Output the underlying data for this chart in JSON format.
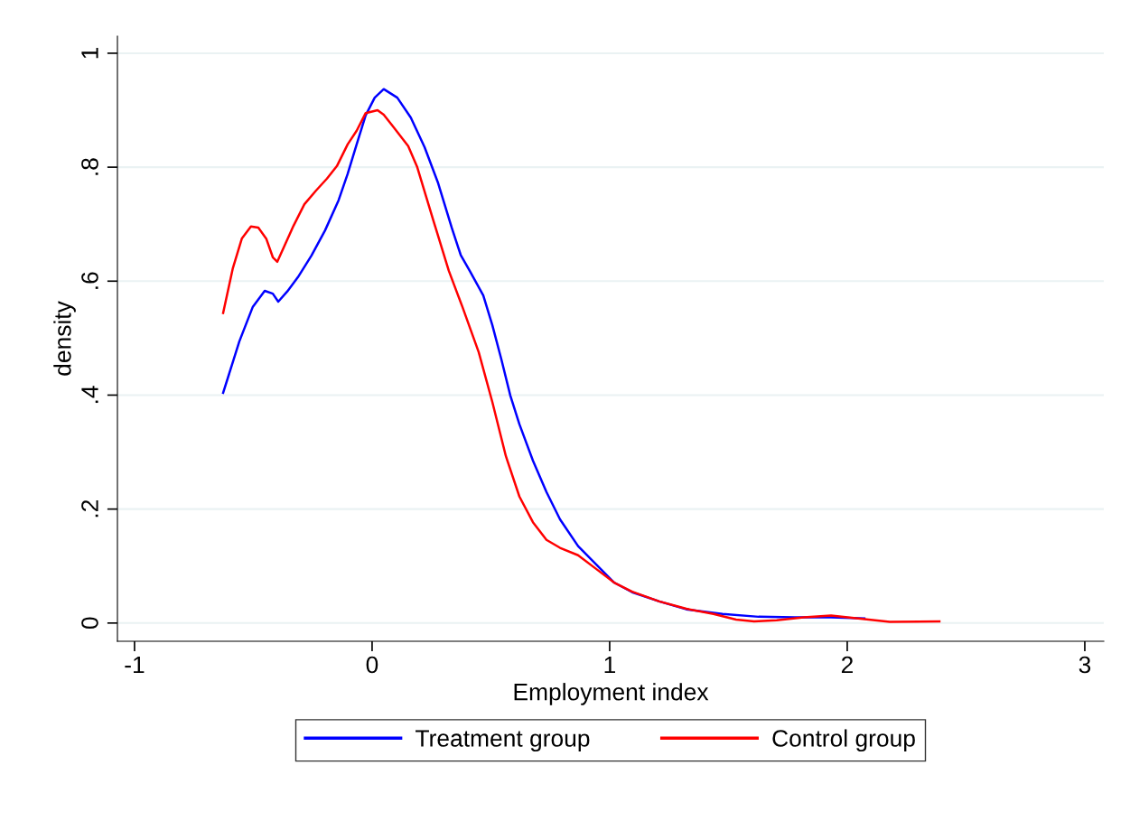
{
  "chart_data": {
    "type": "line",
    "xlabel": "Employment index",
    "ylabel": "density",
    "xlim": [
      -1.072,
      3.08
    ],
    "ylim": [
      -0.032,
      1.03
    ],
    "xticks": [
      -1,
      0,
      1,
      2,
      3
    ],
    "yticks": [
      {
        "value": 0,
        "label": "0"
      },
      {
        "value": 0.2,
        "label": ".2"
      },
      {
        "value": 0.4,
        "label": ".4"
      },
      {
        "value": 0.6,
        "label": ".6"
      },
      {
        "value": 0.8,
        "label": ".8"
      },
      {
        "value": 1,
        "label": "1"
      }
    ],
    "grid": "y",
    "legend": "bottom",
    "line_style": "solid",
    "series": [
      {
        "name": "Treatment group",
        "color": "#0000ff",
        "x": [
          -0.627,
          -0.559,
          -0.502,
          -0.452,
          -0.418,
          -0.395,
          -0.357,
          -0.312,
          -0.255,
          -0.198,
          -0.141,
          -0.103,
          -0.065,
          -0.027,
          0.011,
          0.049,
          0.076,
          0.106,
          0.163,
          0.221,
          0.278,
          0.335,
          0.373,
          0.411,
          0.468,
          0.506,
          0.544,
          0.582,
          0.62,
          0.677,
          0.734,
          0.791,
          0.867,
          0.943,
          1.019,
          1.095,
          1.209,
          1.323,
          1.475,
          1.627,
          1.779,
          1.932,
          2.072
        ],
        "values": [
          0.404,
          0.494,
          0.555,
          0.583,
          0.578,
          0.564,
          0.582,
          0.607,
          0.645,
          0.689,
          0.742,
          0.788,
          0.84,
          0.891,
          0.922,
          0.937,
          0.93,
          0.922,
          0.887,
          0.835,
          0.772,
          0.694,
          0.646,
          0.618,
          0.575,
          0.523,
          0.463,
          0.399,
          0.349,
          0.285,
          0.23,
          0.182,
          0.135,
          0.103,
          0.071,
          0.054,
          0.038,
          0.024,
          0.016,
          0.011,
          0.01,
          0.01,
          0.008
        ]
      },
      {
        "name": "Control group",
        "color": "#ff0000",
        "x": [
          -0.627,
          -0.586,
          -0.548,
          -0.51,
          -0.479,
          -0.445,
          -0.418,
          -0.399,
          -0.369,
          -0.331,
          -0.285,
          -0.236,
          -0.19,
          -0.148,
          -0.103,
          -0.065,
          -0.027,
          0.023,
          0.049,
          0.091,
          0.152,
          0.19,
          0.259,
          0.323,
          0.38,
          0.449,
          0.506,
          0.563,
          0.62,
          0.677,
          0.734,
          0.791,
          0.867,
          0.943,
          1.019,
          1.095,
          1.209,
          1.323,
          1.437,
          1.532,
          1.608,
          1.703,
          1.817,
          1.932,
          2.046,
          2.179,
          2.388
        ],
        "values": [
          0.544,
          0.623,
          0.675,
          0.696,
          0.694,
          0.674,
          0.642,
          0.634,
          0.662,
          0.697,
          0.735,
          0.759,
          0.78,
          0.802,
          0.84,
          0.864,
          0.895,
          0.9,
          0.892,
          0.87,
          0.837,
          0.8,
          0.705,
          0.618,
          0.555,
          0.475,
          0.388,
          0.293,
          0.222,
          0.177,
          0.146,
          0.132,
          0.119,
          0.095,
          0.071,
          0.055,
          0.038,
          0.025,
          0.016,
          0.006,
          0.003,
          0.005,
          0.01,
          0.013,
          0.008,
          0.002,
          0.003
        ]
      }
    ]
  }
}
